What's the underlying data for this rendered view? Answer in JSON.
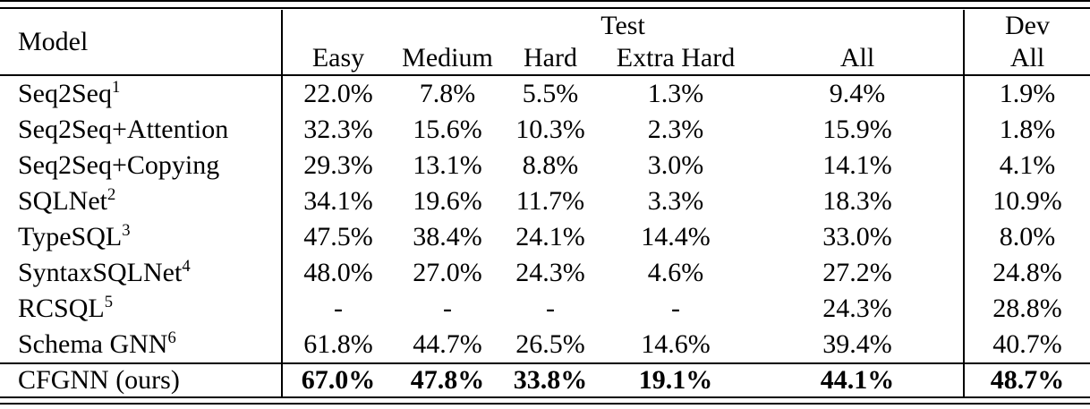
{
  "page": {
    "background": "#ffffff",
    "text_color": "#000000",
    "rule_color": "#000000"
  },
  "chart_data": {
    "type": "table",
    "title": "",
    "column_groups": [
      "Test",
      "Dev"
    ],
    "columns": [
      "Model",
      "Easy",
      "Medium",
      "Hard",
      "Extra Hard",
      "All",
      "All"
    ],
    "rows": [
      [
        "Seq2Seq1",
        "22.0%",
        "7.8%",
        "5.5%",
        "1.3%",
        "9.4%",
        "1.9%"
      ],
      [
        "Seq2Seq+Attention",
        "32.3%",
        "15.6%",
        "10.3%",
        "2.3%",
        "15.9%",
        "1.8%"
      ],
      [
        "Seq2Seq+Copying",
        "29.3%",
        "13.1%",
        "8.8%",
        "3.0%",
        "14.1%",
        "4.1%"
      ],
      [
        "SQLNet2",
        "34.1%",
        "19.6%",
        "11.7%",
        "3.3%",
        "18.3%",
        "10.9%"
      ],
      [
        "TypeSQL3",
        "47.5%",
        "38.4%",
        "24.1%",
        "14.4%",
        "33.0%",
        "8.0%"
      ],
      [
        "SyntaxSQLNet4",
        "48.0%",
        "27.0%",
        "24.3%",
        "4.6%",
        "27.2%",
        "24.8%"
      ],
      [
        "RCSQL5",
        "-",
        "-",
        "-",
        "-",
        "24.3%",
        "28.8%"
      ],
      [
        "Schema GNN6",
        "61.8%",
        "44.7%",
        "26.5%",
        "14.6%",
        "39.4%",
        "40.7%"
      ],
      [
        "CFGNN (ours)",
        "67.0%",
        "47.8%",
        "33.8%",
        "19.1%",
        "44.1%",
        "48.7%"
      ]
    ]
  },
  "table": {
    "header": {
      "model": "Model",
      "test_group": "Test",
      "dev_group": "Dev",
      "test_columns": [
        "Easy",
        "Medium",
        "Hard",
        "Extra Hard",
        "All"
      ],
      "dev_column": "All"
    },
    "rows": [
      {
        "model": "Seq2Seq",
        "sup": "1",
        "bold": false,
        "values": [
          "22.0%",
          "7.8%",
          "5.5%",
          "1.3%",
          "9.4%",
          "1.9%"
        ]
      },
      {
        "model": "Seq2Seq+Attention",
        "sup": "",
        "bold": false,
        "values": [
          "32.3%",
          "15.6%",
          "10.3%",
          "2.3%",
          "15.9%",
          "1.8%"
        ]
      },
      {
        "model": "Seq2Seq+Copying",
        "sup": "",
        "bold": false,
        "values": [
          "29.3%",
          "13.1%",
          "8.8%",
          "3.0%",
          "14.1%",
          "4.1%"
        ]
      },
      {
        "model": "SQLNet",
        "sup": "2",
        "bold": false,
        "values": [
          "34.1%",
          "19.6%",
          "11.7%",
          "3.3%",
          "18.3%",
          "10.9%"
        ]
      },
      {
        "model": "TypeSQL",
        "sup": "3",
        "bold": false,
        "values": [
          "47.5%",
          "38.4%",
          "24.1%",
          "14.4%",
          "33.0%",
          "8.0%"
        ]
      },
      {
        "model": "SyntaxSQLNet",
        "sup": "4",
        "bold": false,
        "values": [
          "48.0%",
          "27.0%",
          "24.3%",
          "4.6%",
          "27.2%",
          "24.8%"
        ]
      },
      {
        "model": "RCSQL",
        "sup": "5",
        "bold": false,
        "values": [
          "-",
          "-",
          "-",
          "-",
          "24.3%",
          "28.8%"
        ]
      },
      {
        "model": "Schema GNN",
        "sup": "6",
        "bold": false,
        "values": [
          "61.8%",
          "44.7%",
          "26.5%",
          "14.6%",
          "39.4%",
          "40.7%"
        ]
      },
      {
        "model": "CFGNN (ours)",
        "sup": "",
        "bold": true,
        "values": [
          "67.0%",
          "47.8%",
          "33.8%",
          "19.1%",
          "44.1%",
          "48.7%"
        ]
      }
    ]
  }
}
